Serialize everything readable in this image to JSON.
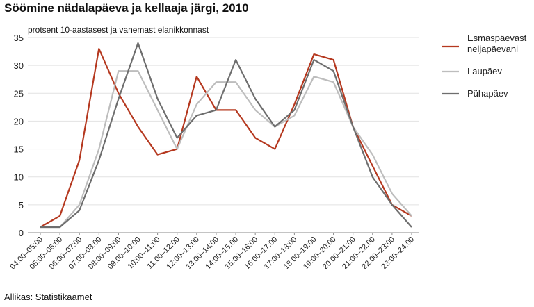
{
  "title": "Söömine nädalapäeva ja kellaaja järgi, 2010",
  "source": "Allikas: Statistikaamet",
  "chart_data": {
    "type": "line",
    "title": "Söömine nädalapäeva ja kellaaja järgi, 2010",
    "ylabel": "protsent 10-aastasest ja vanemast elanikkonnast",
    "xlabel": "",
    "ylim": [
      0,
      35
    ],
    "yticks": [
      0,
      5,
      10,
      15,
      20,
      25,
      30,
      35
    ],
    "grid": true,
    "legend": "right",
    "categories": [
      "04:00–05:00",
      "05:00–06:00",
      "06:00–07:00",
      "07:00–08:00",
      "08:00–09:00",
      "09:00–10:00",
      "10:00–11:00",
      "11:00–12:00",
      "12:00–13:00",
      "13:00–14:00",
      "14:00–15:00",
      "15:00–16:00",
      "16:00–17:00",
      "17:00–18:00",
      "18:00–19:00",
      "19:00–20:00",
      "20:00–21:00",
      "21:00–22:00",
      "22:00–23:00",
      "23:00–24:00"
    ],
    "series": [
      {
        "name": "Esmaspäevast neljapäevani",
        "legend_lines": [
          "Esmaspäevast",
          "neljapäevani"
        ],
        "color": "#b5381f",
        "values": [
          1,
          3,
          13,
          33,
          25,
          19,
          14,
          15,
          28,
          22,
          22,
          17,
          15,
          23,
          32,
          31,
          19,
          12,
          5,
          3
        ]
      },
      {
        "name": "Laupäev",
        "legend_lines": [
          "Laupäev"
        ],
        "color": "#bdbdbd",
        "values": [
          1,
          1,
          5,
          15,
          29,
          29,
          22,
          15,
          23,
          27,
          27,
          22,
          19,
          21,
          28,
          27,
          19,
          14,
          7,
          3
        ]
      },
      {
        "name": "Pühapäev",
        "legend_lines": [
          "Pühapäev"
        ],
        "color": "#6e6e6e",
        "values": [
          1,
          1,
          4,
          13,
          24,
          34,
          24,
          17,
          21,
          22,
          31,
          24,
          19,
          22,
          31,
          29,
          19,
          10,
          5,
          1
        ]
      }
    ]
  }
}
